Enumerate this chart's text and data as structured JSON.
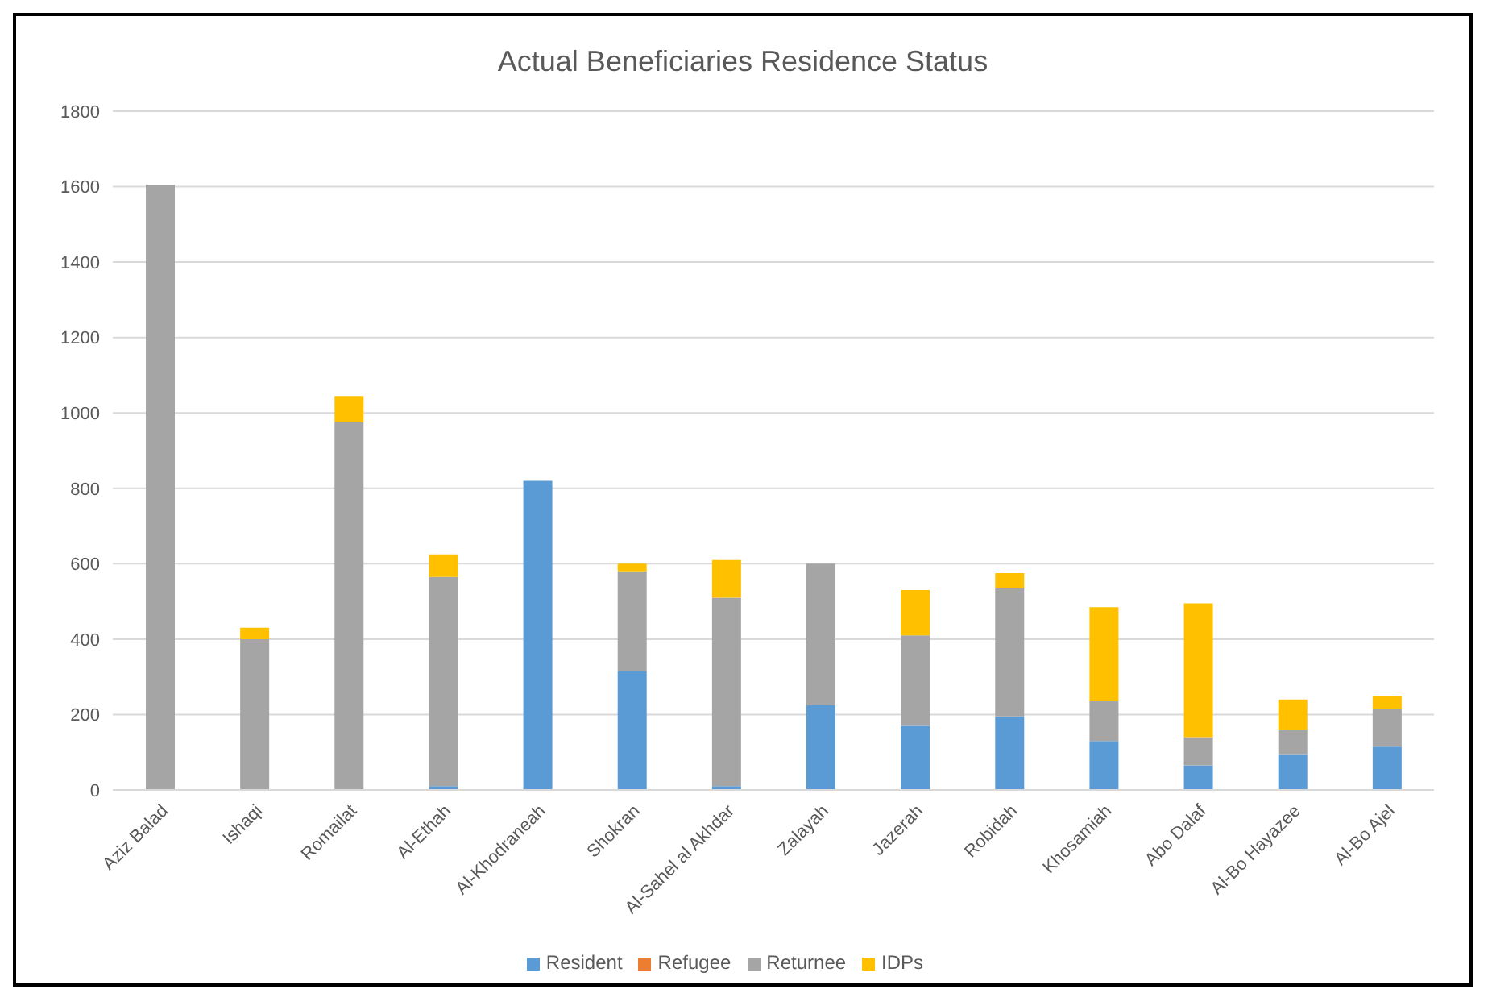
{
  "chart_data": {
    "type": "bar",
    "title": "Actual Beneficiaries Residence Status",
    "stacked": true,
    "grid": "y",
    "legend": "bottom",
    "categories": [
      "Aziz Balad",
      "Ishaqi",
      "Romailat",
      "Al-Ethah",
      "Al-Khodraneah",
      "Shokran",
      "Al-Sahel al Akhdar",
      "Zalayah",
      "Jazerah",
      "Robidah",
      "Khosamiah",
      "Abo Dalaf",
      "Al-Bo Hayazee",
      "Al-Bo Ajel"
    ],
    "ylim": [
      0,
      1800
    ],
    "yticks": [
      0,
      200,
      400,
      600,
      800,
      1000,
      1200,
      1400,
      1600,
      1800
    ],
    "series": [
      {
        "name": "Resident",
        "color": "#5b9bd5",
        "values": [
          0,
          0,
          0,
          10,
          820,
          315,
          10,
          225,
          170,
          195,
          130,
          65,
          95,
          115
        ]
      },
      {
        "name": "Refugee",
        "color": "#ed7d31",
        "values": [
          0,
          0,
          0,
          0,
          0,
          0,
          0,
          0,
          0,
          0,
          0,
          0,
          0,
          0
        ]
      },
      {
        "name": "Returnee",
        "color": "#a5a5a5",
        "values": [
          1605,
          400,
          975,
          555,
          0,
          265,
          500,
          375,
          240,
          340,
          105,
          75,
          65,
          100
        ]
      },
      {
        "name": "IDPs",
        "color": "#ffc000",
        "values": [
          0,
          30,
          70,
          60,
          0,
          20,
          100,
          0,
          120,
          40,
          250,
          355,
          80,
          35
        ]
      }
    ]
  }
}
